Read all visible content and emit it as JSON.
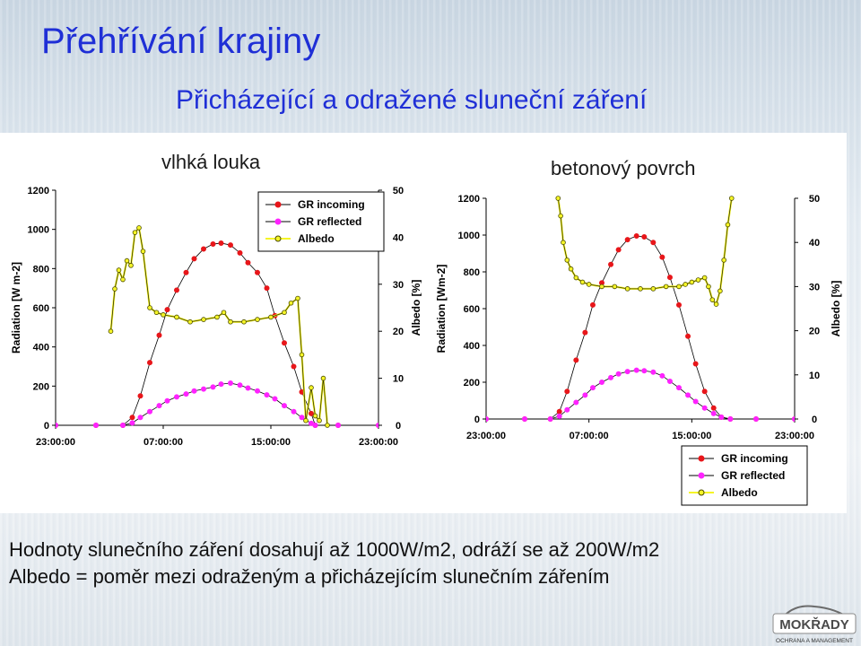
{
  "title": "Přehřívání krajiny",
  "subtitle": "Přicházející a odražené sluneční záření",
  "captions": [
    "Hodnoty slunečního záření dosahují až 1000W/m2, odráží se až 200W/m2",
    "Albedo = poměr mezi odraženým a přicházejícím slunečním zářením"
  ],
  "logo": {
    "name": "MOKŘADY",
    "tagline": "OCHRANA A MANAGEMENT"
  },
  "colors": {
    "title": "#1f2fd6",
    "gr_incoming": "#e8161a",
    "gr_reflected": "#ff22ff",
    "albedo_fill": "#f5f527",
    "albedo_line": "#4a4a00"
  },
  "chart_data": [
    {
      "type": "line",
      "panel_label": "vlhká louka",
      "xlabel": "",
      "ylabel": "Radiation [W m-2]",
      "y2label": "Albedo [%]",
      "ylim": [
        0,
        1200
      ],
      "y2lim": [
        0,
        50
      ],
      "yticks": [
        "0",
        "200",
        "400",
        "600",
        "800",
        "1000",
        "1200"
      ],
      "y2ticks": [
        "0",
        "10",
        "20",
        "30",
        "40",
        "50"
      ],
      "xticks": [
        "23:00:00",
        "07:00:00",
        "15:00:00",
        "23:00:00"
      ],
      "xtick_hours": [
        0,
        8,
        16,
        24
      ],
      "legend_position": "top-right",
      "series": [
        {
          "name": "GR incoming",
          "axis": "left",
          "x": [
            0,
            3,
            5,
            5.7,
            6.3,
            7,
            7.7,
            8.3,
            9,
            9.7,
            10.3,
            11,
            11.7,
            12.3,
            13,
            13.7,
            14.3,
            15,
            15.7,
            16.3,
            17,
            17.7,
            18.3,
            19,
            19.3,
            21,
            24
          ],
          "y": [
            0,
            0,
            0,
            40,
            150,
            320,
            460,
            590,
            690,
            780,
            850,
            900,
            925,
            930,
            920,
            880,
            830,
            780,
            700,
            560,
            420,
            300,
            170,
            60,
            0,
            0,
            0
          ]
        },
        {
          "name": "GR reflected",
          "axis": "left",
          "x": [
            0,
            3,
            5,
            5.7,
            6.3,
            7,
            7.7,
            8.3,
            9,
            9.7,
            10.3,
            11,
            11.7,
            12.3,
            13,
            13.7,
            14.3,
            15,
            15.7,
            16.3,
            17,
            17.7,
            18.3,
            19,
            19.3,
            21,
            24
          ],
          "y": [
            0,
            0,
            0,
            12,
            40,
            70,
            100,
            125,
            145,
            160,
            175,
            185,
            195,
            210,
            215,
            205,
            190,
            175,
            155,
            135,
            100,
            70,
            40,
            10,
            0,
            0,
            0
          ]
        },
        {
          "name": "Albedo",
          "axis": "right",
          "x": [
            4.1,
            4.4,
            4.7,
            5.0,
            5.3,
            5.6,
            5.9,
            6.2,
            6.5,
            7,
            7.5,
            8,
            9,
            10,
            11,
            12,
            12.5,
            13,
            14,
            15,
            16,
            17,
            17.5,
            18,
            18.3,
            18.6,
            19.0,
            19.3,
            19.6,
            19.9,
            20.2
          ],
          "y": [
            20,
            29,
            33,
            31,
            35,
            34,
            41,
            42,
            37,
            25,
            24,
            23.5,
            23,
            22,
            22.5,
            23,
            24,
            22,
            22,
            22.5,
            23,
            24,
            26,
            27,
            15,
            1,
            8,
            2,
            1,
            10,
            0
          ]
        }
      ]
    },
    {
      "type": "line",
      "panel_label": "betonový povrch",
      "xlabel": "",
      "ylabel": "Radiation [Wm-2]",
      "y2label": "Albedo [%]",
      "ylim": [
        0,
        1200
      ],
      "y2lim": [
        0,
        50
      ],
      "yticks": [
        "0",
        "200",
        "400",
        "600",
        "800",
        "1000",
        "1200"
      ],
      "y2ticks": [
        "0",
        "10",
        "20",
        "30",
        "40",
        "50"
      ],
      "xticks": [
        "23:00:00",
        "07:00:00",
        "15:00:00",
        "23:00:00"
      ],
      "xtick_hours": [
        0,
        8,
        16,
        24
      ],
      "legend_position": "bottom-right",
      "series": [
        {
          "name": "GR incoming",
          "axis": "left",
          "x": [
            0,
            3,
            5,
            5.7,
            6.3,
            7,
            7.7,
            8.3,
            9,
            9.7,
            10.3,
            11,
            11.7,
            12.3,
            13,
            13.7,
            14.3,
            15,
            15.7,
            16.3,
            17,
            17.7,
            18.3,
            19,
            21,
            24
          ],
          "y": [
            0,
            0,
            0,
            40,
            150,
            320,
            470,
            620,
            740,
            840,
            920,
            975,
            995,
            990,
            960,
            880,
            770,
            620,
            450,
            300,
            150,
            60,
            10,
            0,
            0,
            0
          ]
        },
        {
          "name": "GR reflected",
          "axis": "left",
          "x": [
            0,
            3,
            5,
            5.7,
            6.3,
            7,
            7.7,
            8.3,
            9,
            9.7,
            10.3,
            11,
            11.7,
            12.3,
            13,
            13.7,
            14.3,
            15,
            15.7,
            16.3,
            17,
            17.7,
            18.3,
            19,
            21,
            24
          ],
          "y": [
            0,
            0,
            0,
            15,
            50,
            90,
            130,
            170,
            200,
            225,
            245,
            258,
            265,
            262,
            255,
            235,
            205,
            170,
            130,
            95,
            60,
            30,
            10,
            0,
            0,
            0
          ]
        },
        {
          "name": "Albedo",
          "axis": "right",
          "x": [
            5.6,
            5.8,
            6.0,
            6.3,
            6.6,
            7,
            7.5,
            8,
            9,
            10,
            11,
            12,
            13,
            14,
            15,
            15.5,
            16,
            16.5,
            17,
            17.3,
            17.6,
            17.9,
            18.2,
            18.5,
            18.8,
            19.1
          ],
          "y": [
            50,
            46,
            40,
            36,
            34,
            32,
            31,
            30.5,
            30,
            30,
            29.5,
            29.5,
            29.5,
            30,
            30,
            30.5,
            31,
            31.5,
            32,
            30,
            27,
            26,
            29,
            36,
            44,
            50
          ]
        }
      ]
    }
  ]
}
